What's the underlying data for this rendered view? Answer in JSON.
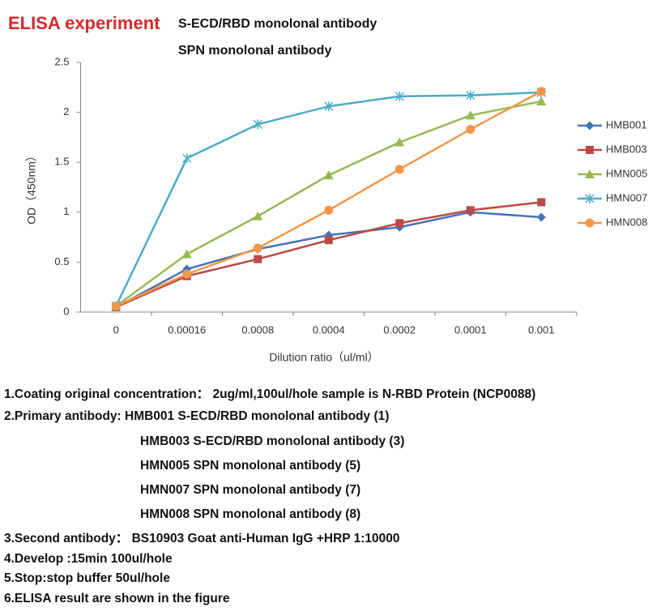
{
  "header": {
    "title": "ELISA experiment",
    "subtitle1": "S-ECD/RBD monolonal antibody",
    "subtitle2": "SPN monolonal antibody"
  },
  "chart_data": {
    "type": "line",
    "x_label": "Dilution ratio（ul/ml）",
    "y_label": "OD（450nm）",
    "categories": [
      "0",
      "0.00016",
      "0.0008",
      "0.0004",
      "0.0002",
      "0.0001",
      "0.001"
    ],
    "ylim": [
      0,
      2.5
    ],
    "yticks": [
      0,
      0.5,
      1,
      1.5,
      2,
      2.5
    ],
    "legend": "right",
    "series": [
      {
        "name": "HMB001",
        "color": "#4a72b8",
        "marker": "diamond",
        "values": [
          0.05,
          0.43,
          0.63,
          0.77,
          0.85,
          1.0,
          0.95
        ]
      },
      {
        "name": "HMB003",
        "color": "#b94a48",
        "marker": "square",
        "values": [
          0.05,
          0.36,
          0.53,
          0.72,
          0.89,
          1.02,
          1.1
        ]
      },
      {
        "name": "HMN005",
        "color": "#98b954",
        "marker": "triangle",
        "values": [
          0.06,
          0.58,
          0.96,
          1.37,
          1.7,
          1.97,
          2.11
        ]
      },
      {
        "name": "HMN007",
        "color": "#4bacc6",
        "marker": "star",
        "values": [
          0.06,
          1.54,
          1.88,
          2.06,
          2.16,
          2.17,
          2.2
        ]
      },
      {
        "name": "HMN008",
        "color": "#f79646",
        "marker": "circle",
        "values": [
          0.06,
          0.38,
          0.64,
          1.02,
          1.43,
          1.83,
          2.21
        ]
      }
    ]
  },
  "notes": [
    "1.Coating original concentration：  2ug/ml,100ul/hole sample is N-RBD Protein  (NCP0088)",
    "2.Primary antibody: HMB001  S-ECD/RBD monolonal antibody  (1)",
    "HMB003  S-ECD/RBD monolonal antibody  (3)",
    "HMN005  SPN monolonal antibody  (5)",
    "HMN007  SPN monolonal antibody  (7)",
    "HMN008  SPN monolonal antibody  (8)",
    "3.Second antibody：  BS10903  Goat anti-Human IgG +HRP  1:10000",
    "4.Develop :15min  100ul/hole",
    "5.Stop:stop buffer  50ul/hole",
    "6.ELISA result are shown in the figure"
  ]
}
